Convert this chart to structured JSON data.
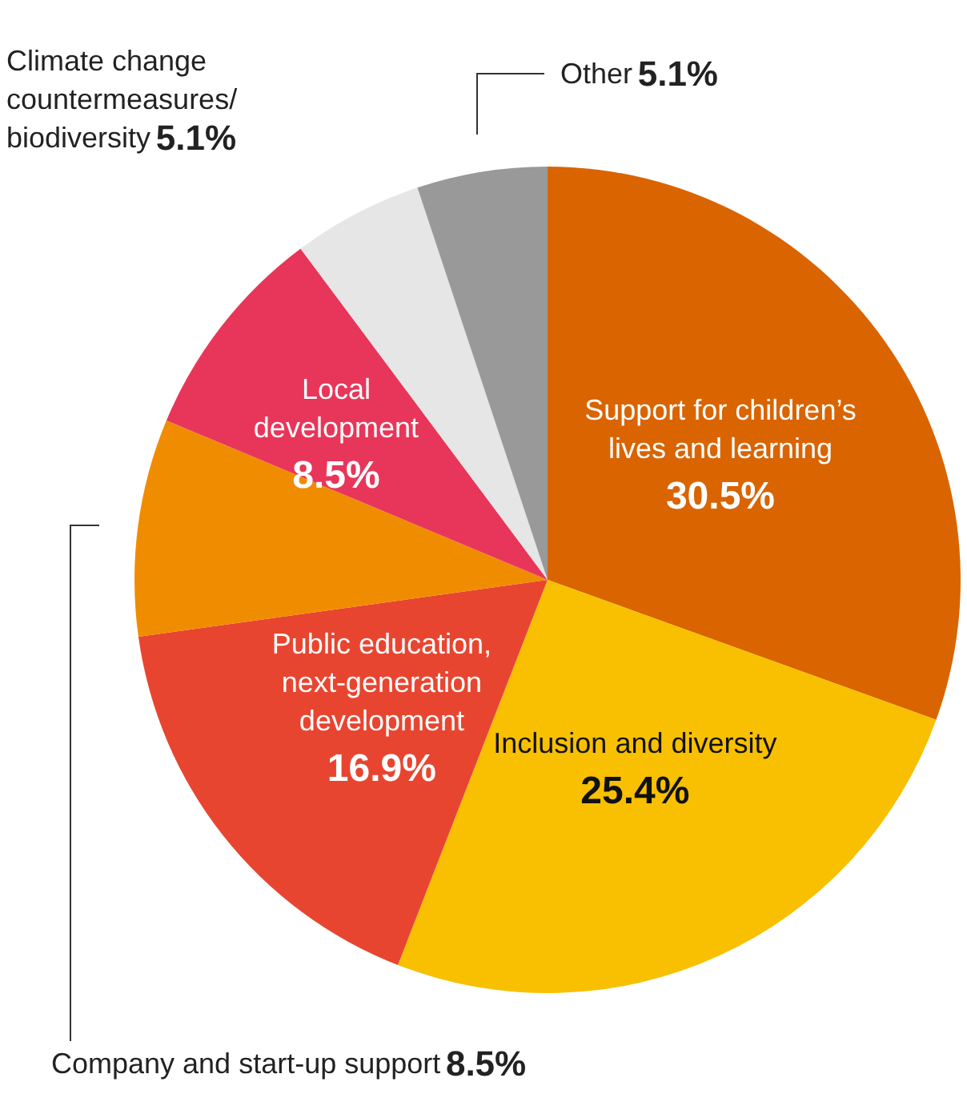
{
  "chart_data": {
    "type": "pie",
    "categories": [
      "Support for children’s lives and learning",
      "Inclusion and diversity",
      "Public education, next-generation development",
      "Company and start-up support",
      "Local development",
      "Climate change countermeasures/ biodiversity",
      "Other"
    ],
    "values": [
      30.5,
      25.4,
      16.9,
      8.5,
      8.5,
      5.1,
      5.1
    ],
    "value_labels": [
      "30.5%",
      "25.4%",
      "16.9%",
      "8.5%",
      "8.5%",
      "5.1%",
      "5.1%"
    ],
    "colors": [
      "#d96400",
      "#f8c000",
      "#e84530",
      "#f08c00",
      "#e8365a",
      "#e6e6e6",
      "#999999"
    ],
    "legend": false
  }
}
